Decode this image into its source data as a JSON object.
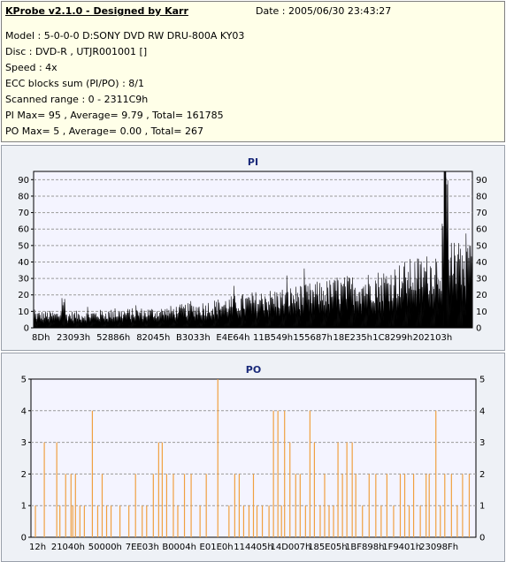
{
  "header": {
    "title": "KProbe v2.1.0 - Designed by Karr",
    "date": "Date : 2005/06/30 23:43:27",
    "lines": [
      "Model : 5-0-0-0 D:SONY    DVD RW DRU-800A  KY03",
      "Disc : DVD-R , UTJR001001 []",
      "Speed : 4x",
      "ECC blocks sum (PI/PO) : 8/1",
      "Scanned range : 0 - 2311C9h",
      "PI Max= 95 , Average= 9.79 , Total= 161785",
      "PO Max= 5 , Average= 0.00 , Total= 267"
    ]
  },
  "colors": {
    "pi_fill": "#000000",
    "po_line": "#f0a040",
    "plot_bg": "#f4f4ff",
    "grid": "#9a9a9a"
  },
  "chart_data": [
    {
      "type": "area",
      "title": "PI",
      "ylim": [
        0,
        95
      ],
      "y_ticks": [
        0,
        10,
        20,
        30,
        40,
        50,
        60,
        70,
        80,
        90
      ],
      "x_tick_labels": [
        "8Dh",
        "23093h",
        "52886h",
        "82045h",
        "B3033h",
        "E4E64h",
        "11B549h",
        "155687h",
        "18E235h",
        "1C8299h",
        "202103h"
      ],
      "grid": true,
      "baseline_x": [
        0,
        0.06,
        0.065,
        0.07,
        0.073,
        0.1,
        0.2,
        0.3,
        0.4,
        0.5,
        0.6,
        0.7,
        0.8,
        0.85,
        0.88,
        0.9,
        0.93,
        0.935,
        0.95,
        0.96,
        0.975,
        0.99,
        1.0
      ],
      "baseline_y": [
        8,
        8,
        18,
        18,
        8,
        8,
        9,
        10,
        13,
        17,
        20,
        24,
        28,
        32,
        34,
        35,
        40,
        87,
        42,
        38,
        42,
        46,
        50
      ],
      "peak_labels": {
        "max": 95
      }
    },
    {
      "type": "bar",
      "title": "PO",
      "ylim": [
        0,
        5
      ],
      "y_ticks": [
        0,
        1,
        2,
        3,
        4,
        5
      ],
      "x_tick_labels": [
        "12h",
        "21040h",
        "50000h",
        "7EE03h",
        "B0004h",
        "E01E0h",
        "114405h",
        "14D007h",
        "185E05h",
        "1BF898h",
        "1F9401h",
        "23098Fh"
      ],
      "grid": true,
      "spikes": [
        [
          0.01,
          1
        ],
        [
          0.03,
          3
        ],
        [
          0.058,
          3
        ],
        [
          0.065,
          1
        ],
        [
          0.078,
          2
        ],
        [
          0.09,
          2
        ],
        [
          0.094,
          1
        ],
        [
          0.1,
          2
        ],
        [
          0.11,
          1
        ],
        [
          0.12,
          1
        ],
        [
          0.138,
          4
        ],
        [
          0.15,
          1
        ],
        [
          0.16,
          2
        ],
        [
          0.17,
          1
        ],
        [
          0.18,
          1
        ],
        [
          0.2,
          1
        ],
        [
          0.22,
          1
        ],
        [
          0.235,
          2
        ],
        [
          0.25,
          1
        ],
        [
          0.26,
          1
        ],
        [
          0.275,
          2
        ],
        [
          0.287,
          3
        ],
        [
          0.295,
          3
        ],
        [
          0.305,
          2
        ],
        [
          0.32,
          2
        ],
        [
          0.33,
          1
        ],
        [
          0.345,
          2
        ],
        [
          0.36,
          2
        ],
        [
          0.38,
          1
        ],
        [
          0.394,
          2
        ],
        [
          0.42,
          5
        ],
        [
          0.445,
          1
        ],
        [
          0.458,
          2
        ],
        [
          0.468,
          2
        ],
        [
          0.478,
          1
        ],
        [
          0.49,
          1
        ],
        [
          0.5,
          2
        ],
        [
          0.508,
          1
        ],
        [
          0.52,
          1
        ],
        [
          0.535,
          1
        ],
        [
          0.545,
          4
        ],
        [
          0.555,
          4
        ],
        [
          0.563,
          1
        ],
        [
          0.57,
          4
        ],
        [
          0.582,
          3
        ],
        [
          0.595,
          2
        ],
        [
          0.605,
          2
        ],
        [
          0.617,
          1
        ],
        [
          0.627,
          4
        ],
        [
          0.637,
          3
        ],
        [
          0.65,
          1
        ],
        [
          0.66,
          2
        ],
        [
          0.67,
          1
        ],
        [
          0.68,
          1
        ],
        [
          0.69,
          3
        ],
        [
          0.7,
          2
        ],
        [
          0.71,
          3
        ],
        [
          0.722,
          3
        ],
        [
          0.73,
          2
        ],
        [
          0.745,
          1
        ],
        [
          0.76,
          2
        ],
        [
          0.775,
          2
        ],
        [
          0.787,
          1
        ],
        [
          0.8,
          2
        ],
        [
          0.815,
          1
        ],
        [
          0.83,
          2
        ],
        [
          0.84,
          2
        ],
        [
          0.85,
          1
        ],
        [
          0.86,
          2
        ],
        [
          0.875,
          1
        ],
        [
          0.888,
          2
        ],
        [
          0.895,
          2
        ],
        [
          0.91,
          4
        ],
        [
          0.92,
          1
        ],
        [
          0.93,
          2
        ],
        [
          0.945,
          2
        ],
        [
          0.958,
          1
        ],
        [
          0.97,
          2
        ],
        [
          0.985,
          2
        ]
      ]
    }
  ]
}
